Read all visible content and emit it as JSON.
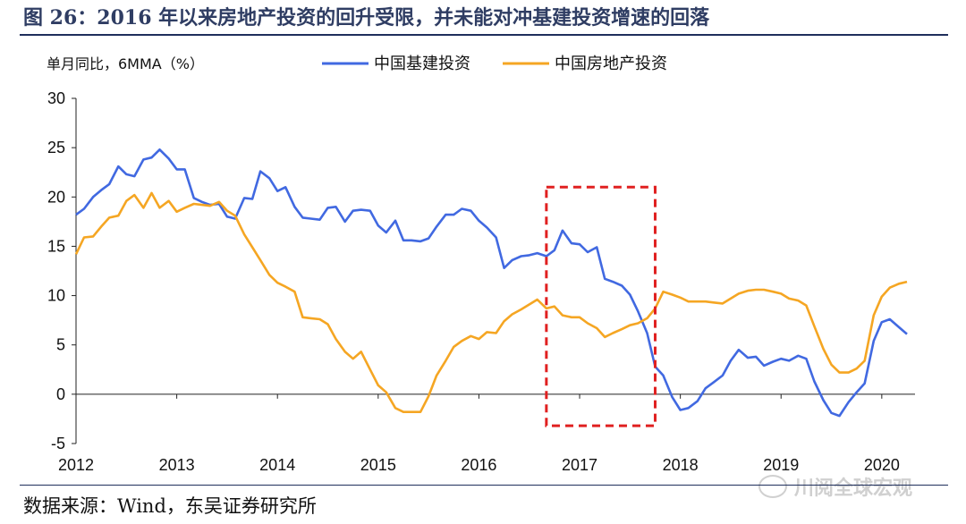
{
  "figure": {
    "title": "图 26：2016 年以来房地产投资的回升受限，并未能对冲基建投资增速的回落",
    "source": "数据来源：Wind，东吴证券研究所",
    "watermark": "川阅全球宏观",
    "colors": {
      "title": "#2f3d63",
      "series1": "#4169e1",
      "series2": "#f5a623",
      "highlight_box": "#e02020"
    }
  },
  "chart_data": {
    "type": "line",
    "ylabel": "单月同比，6MMA（%）",
    "ylim": [
      -5,
      30
    ],
    "yticks": [
      -5,
      0,
      5,
      10,
      15,
      20,
      25,
      30
    ],
    "xlim": [
      2012.0,
      2020.33
    ],
    "xticks": [
      2012,
      2013,
      2014,
      2015,
      2016,
      2017,
      2018,
      2019,
      2020
    ],
    "xtick_labels": [
      "2012",
      "2013",
      "2014",
      "2015",
      "2016",
      "2017",
      "2018",
      "2019",
      "2020"
    ],
    "legend_position": "top",
    "grid": false,
    "highlight_box": {
      "x": [
        2016.67,
        2017.75
      ],
      "y": [
        -3.2,
        21.0
      ]
    },
    "series": [
      {
        "name": "中国基建投资",
        "color": "#4169e1",
        "points": [
          [
            2012.0,
            18.2
          ],
          [
            2012.08,
            18.8
          ],
          [
            2012.17,
            20.0
          ],
          [
            2012.25,
            20.7
          ],
          [
            2012.33,
            21.3
          ],
          [
            2012.42,
            23.1
          ],
          [
            2012.5,
            22.3
          ],
          [
            2012.58,
            22.1
          ],
          [
            2012.67,
            23.8
          ],
          [
            2012.75,
            24.0
          ],
          [
            2012.83,
            24.8
          ],
          [
            2012.92,
            23.9
          ],
          [
            2013.0,
            22.8
          ],
          [
            2013.08,
            22.8
          ],
          [
            2013.17,
            19.9
          ],
          [
            2013.25,
            19.5
          ],
          [
            2013.33,
            19.2
          ],
          [
            2013.42,
            19.3
          ],
          [
            2013.5,
            18.0
          ],
          [
            2013.58,
            17.8
          ],
          [
            2013.67,
            19.9
          ],
          [
            2013.75,
            19.8
          ],
          [
            2013.83,
            22.6
          ],
          [
            2013.92,
            21.9
          ],
          [
            2014.0,
            20.6
          ],
          [
            2014.08,
            21.0
          ],
          [
            2014.17,
            19.0
          ],
          [
            2014.25,
            17.9
          ],
          [
            2014.33,
            17.8
          ],
          [
            2014.42,
            17.7
          ],
          [
            2014.5,
            18.9
          ],
          [
            2014.58,
            19.0
          ],
          [
            2014.67,
            17.5
          ],
          [
            2014.75,
            18.6
          ],
          [
            2014.83,
            18.7
          ],
          [
            2014.92,
            18.6
          ],
          [
            2015.0,
            17.1
          ],
          [
            2015.08,
            16.4
          ],
          [
            2015.17,
            17.6
          ],
          [
            2015.25,
            15.6
          ],
          [
            2015.33,
            15.6
          ],
          [
            2015.42,
            15.5
          ],
          [
            2015.5,
            15.8
          ],
          [
            2015.58,
            17.0
          ],
          [
            2015.67,
            18.2
          ],
          [
            2015.75,
            18.2
          ],
          [
            2015.83,
            18.8
          ],
          [
            2015.92,
            18.6
          ],
          [
            2016.0,
            17.6
          ],
          [
            2016.08,
            16.9
          ],
          [
            2016.17,
            15.9
          ],
          [
            2016.25,
            12.8
          ],
          [
            2016.33,
            13.6
          ],
          [
            2016.42,
            14.0
          ],
          [
            2016.5,
            14.1
          ],
          [
            2016.58,
            14.3
          ],
          [
            2016.67,
            14.0
          ],
          [
            2016.75,
            14.6
          ],
          [
            2016.83,
            16.6
          ],
          [
            2016.92,
            15.3
          ],
          [
            2017.0,
            15.2
          ],
          [
            2017.08,
            14.4
          ],
          [
            2017.17,
            14.9
          ],
          [
            2017.25,
            11.7
          ],
          [
            2017.33,
            11.4
          ],
          [
            2017.42,
            11.0
          ],
          [
            2017.5,
            10.1
          ],
          [
            2017.58,
            8.4
          ],
          [
            2017.67,
            6.2
          ],
          [
            2017.75,
            2.8
          ],
          [
            2017.83,
            1.9
          ],
          [
            2017.92,
            -0.3
          ],
          [
            2018.0,
            -1.6
          ],
          [
            2018.08,
            -1.4
          ],
          [
            2018.17,
            -0.7
          ],
          [
            2018.25,
            0.6
          ],
          [
            2018.33,
            1.2
          ],
          [
            2018.42,
            1.9
          ],
          [
            2018.5,
            3.4
          ],
          [
            2018.58,
            4.5
          ],
          [
            2018.67,
            3.7
          ],
          [
            2018.75,
            3.8
          ],
          [
            2018.83,
            2.9
          ],
          [
            2018.92,
            3.3
          ],
          [
            2019.0,
            3.6
          ],
          [
            2019.08,
            3.4
          ],
          [
            2019.17,
            3.9
          ],
          [
            2019.25,
            3.6
          ],
          [
            2019.33,
            1.3
          ],
          [
            2019.42,
            -0.6
          ],
          [
            2019.5,
            -1.9
          ],
          [
            2019.58,
            -2.2
          ],
          [
            2019.67,
            -0.8
          ],
          [
            2019.75,
            0.2
          ],
          [
            2019.83,
            1.1
          ],
          [
            2019.92,
            5.4
          ],
          [
            2020.0,
            7.3
          ],
          [
            2020.08,
            7.6
          ],
          [
            2020.17,
            6.8
          ],
          [
            2020.25,
            6.1
          ]
        ]
      },
      {
        "name": "中国房地产投资",
        "color": "#f5a623",
        "points": [
          [
            2012.0,
            14.2
          ],
          [
            2012.08,
            15.9
          ],
          [
            2012.17,
            16.0
          ],
          [
            2012.25,
            17.0
          ],
          [
            2012.33,
            17.9
          ],
          [
            2012.42,
            18.1
          ],
          [
            2012.5,
            19.6
          ],
          [
            2012.58,
            20.2
          ],
          [
            2012.67,
            18.9
          ],
          [
            2012.75,
            20.4
          ],
          [
            2012.83,
            18.9
          ],
          [
            2012.92,
            19.6
          ],
          [
            2013.0,
            18.5
          ],
          [
            2013.08,
            18.9
          ],
          [
            2013.17,
            19.3
          ],
          [
            2013.25,
            19.2
          ],
          [
            2013.33,
            19.1
          ],
          [
            2013.42,
            19.5
          ],
          [
            2013.5,
            18.6
          ],
          [
            2013.58,
            18.1
          ],
          [
            2013.67,
            16.2
          ],
          [
            2013.75,
            14.9
          ],
          [
            2013.83,
            13.6
          ],
          [
            2013.92,
            12.1
          ],
          [
            2014.0,
            11.3
          ],
          [
            2014.08,
            10.9
          ],
          [
            2014.17,
            10.4
          ],
          [
            2014.25,
            7.8
          ],
          [
            2014.33,
            7.7
          ],
          [
            2014.42,
            7.6
          ],
          [
            2014.5,
            7.1
          ],
          [
            2014.58,
            5.6
          ],
          [
            2014.67,
            4.3
          ],
          [
            2014.75,
            3.6
          ],
          [
            2014.83,
            4.3
          ],
          [
            2014.92,
            2.5
          ],
          [
            2015.0,
            0.9
          ],
          [
            2015.08,
            0.2
          ],
          [
            2015.17,
            -1.4
          ],
          [
            2015.25,
            -1.8
          ],
          [
            2015.33,
            -1.8
          ],
          [
            2015.42,
            -1.8
          ],
          [
            2015.5,
            -0.2
          ],
          [
            2015.58,
            1.9
          ],
          [
            2015.67,
            3.4
          ],
          [
            2015.75,
            4.8
          ],
          [
            2015.83,
            5.4
          ],
          [
            2015.92,
            5.9
          ],
          [
            2016.0,
            5.6
          ],
          [
            2016.08,
            6.3
          ],
          [
            2016.17,
            6.2
          ],
          [
            2016.25,
            7.4
          ],
          [
            2016.33,
            8.1
          ],
          [
            2016.42,
            8.6
          ],
          [
            2016.5,
            9.1
          ],
          [
            2016.58,
            9.6
          ],
          [
            2016.67,
            8.7
          ],
          [
            2016.75,
            8.9
          ],
          [
            2016.83,
            8.0
          ],
          [
            2016.92,
            7.8
          ],
          [
            2017.0,
            7.8
          ],
          [
            2017.08,
            7.2
          ],
          [
            2017.17,
            6.7
          ],
          [
            2017.25,
            5.8
          ],
          [
            2017.33,
            6.2
          ],
          [
            2017.42,
            6.6
          ],
          [
            2017.5,
            7.0
          ],
          [
            2017.58,
            7.2
          ],
          [
            2017.67,
            7.7
          ],
          [
            2017.75,
            8.7
          ],
          [
            2017.83,
            10.4
          ],
          [
            2017.92,
            10.1
          ],
          [
            2018.0,
            9.8
          ],
          [
            2018.08,
            9.4
          ],
          [
            2018.17,
            9.4
          ],
          [
            2018.25,
            9.4
          ],
          [
            2018.33,
            9.3
          ],
          [
            2018.42,
            9.2
          ],
          [
            2018.5,
            9.7
          ],
          [
            2018.58,
            10.2
          ],
          [
            2018.67,
            10.5
          ],
          [
            2018.75,
            10.6
          ],
          [
            2018.83,
            10.6
          ],
          [
            2018.92,
            10.4
          ],
          [
            2019.0,
            10.2
          ],
          [
            2019.08,
            9.7
          ],
          [
            2019.17,
            9.5
          ],
          [
            2019.25,
            9.0
          ],
          [
            2019.33,
            6.9
          ],
          [
            2019.42,
            4.6
          ],
          [
            2019.5,
            3.0
          ],
          [
            2019.58,
            2.2
          ],
          [
            2019.67,
            2.2
          ],
          [
            2019.75,
            2.6
          ],
          [
            2019.83,
            3.4
          ],
          [
            2019.92,
            8.0
          ],
          [
            2020.0,
            9.9
          ],
          [
            2020.08,
            10.8
          ],
          [
            2020.17,
            11.2
          ],
          [
            2020.25,
            11.4
          ]
        ]
      }
    ]
  }
}
